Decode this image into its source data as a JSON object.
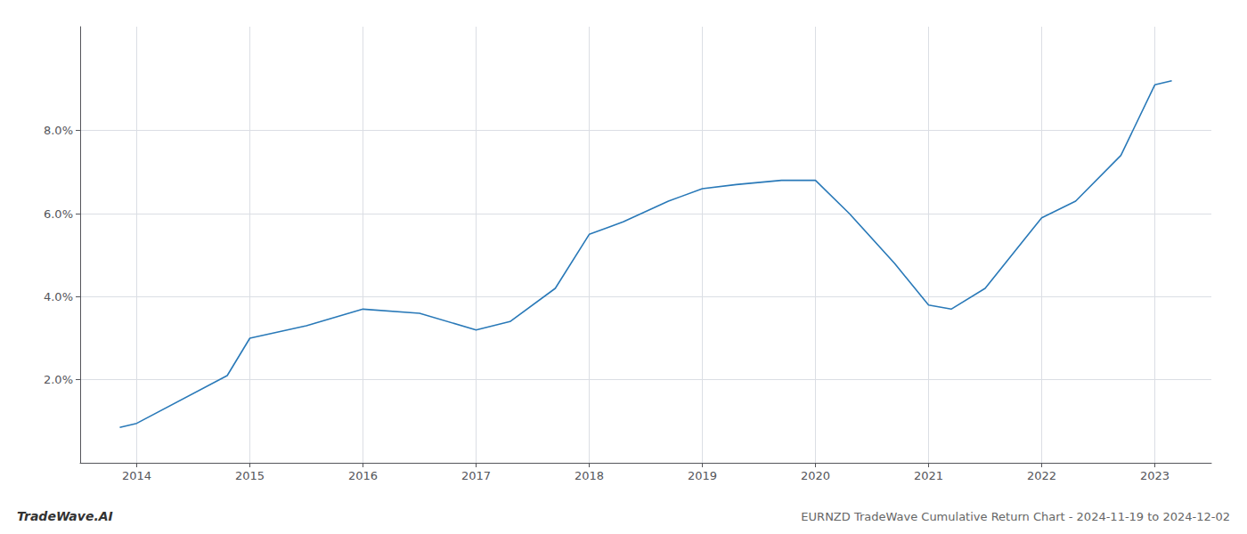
{
  "chart_data": {
    "type": "line",
    "title": "EURNZD TradeWave Cumulative Return Chart - 2024-11-19 to 2024-12-02",
    "annotations": [
      "TradeWave.AI"
    ],
    "x": [
      2013.85,
      2014.0,
      2014.8,
      2015.0,
      2015.5,
      2016.0,
      2016.5,
      2017.0,
      2017.3,
      2017.7,
      2018.0,
      2018.3,
      2018.7,
      2019.0,
      2019.3,
      2019.7,
      2020.0,
      2020.3,
      2020.7,
      2021.0,
      2021.2,
      2021.5,
      2022.0,
      2022.3,
      2022.7,
      2023.0,
      2023.15
    ],
    "values": [
      0.0085,
      0.0095,
      0.021,
      0.03,
      0.033,
      0.037,
      0.036,
      0.032,
      0.034,
      0.042,
      0.055,
      0.058,
      0.063,
      0.066,
      0.067,
      0.068,
      0.068,
      0.06,
      0.048,
      0.038,
      0.037,
      0.042,
      0.059,
      0.063,
      0.074,
      0.091,
      0.092
    ],
    "color": "#2979b8",
    "xlim": [
      2013.5,
      2023.5
    ],
    "xticks": [
      2014,
      2015,
      2016,
      2017,
      2018,
      2019,
      2020,
      2021,
      2022,
      2023
    ],
    "ylim": [
      0.0,
      0.105
    ],
    "yticks": [
      {
        "value": 0.02,
        "label": "2.0%"
      },
      {
        "value": 0.04,
        "label": "4.0%"
      },
      {
        "value": 0.06,
        "label": "6.0%"
      },
      {
        "value": 0.08,
        "label": "8.0%"
      }
    ],
    "grid": true
  }
}
